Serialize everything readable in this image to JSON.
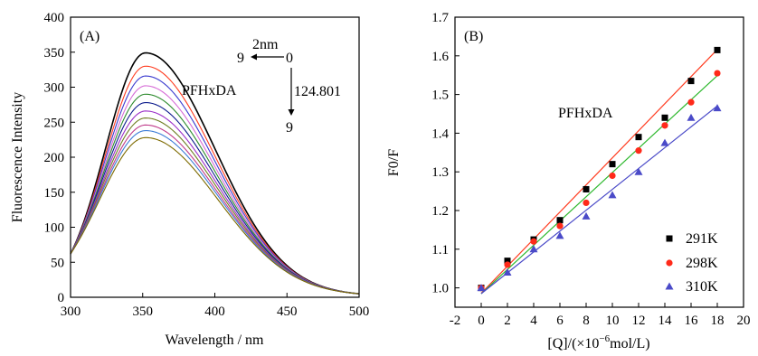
{
  "chart_data": [
    {
      "panel": "(A)",
      "type": "line",
      "xlabel": "Wavelength / nm",
      "ylabel": "Fluorescence Intensity",
      "xlim": [
        300,
        500
      ],
      "ylim": [
        0,
        400
      ],
      "xticks": [
        300,
        350,
        400,
        450,
        500
      ],
      "yticks": [
        0,
        50,
        100,
        150,
        200,
        250,
        300,
        350,
        400
      ],
      "grid": false,
      "annotations": {
        "compound": "PFHxDA",
        "step": "2nm",
        "arrow_start": "0",
        "arrow_end_left": "9",
        "value": "124.801",
        "arrow_end_down": "9"
      },
      "series": [
        {
          "peak": 347,
          "color": "#000000"
        },
        {
          "peak": 328,
          "color": "#ff3b1f"
        },
        {
          "peak": 314,
          "color": "#3a3acf"
        },
        {
          "peak": 300,
          "color": "#d66bd6"
        },
        {
          "peak": 288,
          "color": "#2d8a2d"
        },
        {
          "peak": 276,
          "color": "#0b1a8c"
        },
        {
          "peak": 264,
          "color": "#9b30c8"
        },
        {
          "peak": 254,
          "color": "#6e7e22"
        },
        {
          "peak": 244,
          "color": "#c03a8a"
        },
        {
          "peak": 236,
          "color": "#3b7bd6"
        },
        {
          "peak": 226,
          "color": "#7d6a00"
        }
      ],
      "curve_shape": {
        "peak_x": 352,
        "value_at_300": 62,
        "value_at_500": 4
      }
    },
    {
      "panel": "(B)",
      "type": "scatter",
      "xlabel": "[Q]/(×10",
      "xlabel_sup": "−6",
      "xlabel_tail": "mol/L)",
      "ylabel": "F0/F",
      "xlim": [
        -2,
        20
      ],
      "ylim": [
        0.95,
        1.7
      ],
      "xticks": [
        -2,
        0,
        2,
        4,
        6,
        8,
        10,
        12,
        14,
        16,
        18,
        20
      ],
      "yticks": [
        1.0,
        1.1,
        1.2,
        1.3,
        1.4,
        1.5,
        1.6,
        1.7
      ],
      "grid": false,
      "annotation": "PFHxDA",
      "legend_position": "bottom-right",
      "x": [
        0,
        2,
        4,
        6,
        8,
        10,
        12,
        14,
        16,
        18
      ],
      "series": [
        {
          "name": "291K",
          "marker": "square",
          "color": "#000000",
          "fit_color": "#ff3b1f",
          "values": [
            1.0,
            1.07,
            1.125,
            1.175,
            1.255,
            1.32,
            1.39,
            1.44,
            1.535,
            1.615
          ],
          "fit": [
            0.986,
            1.6164
          ]
        },
        {
          "name": "298K",
          "marker": "circle",
          "color": "#ff2a1a",
          "fit_color": "#2db82d",
          "values": [
            1.0,
            1.06,
            1.12,
            1.16,
            1.22,
            1.29,
            1.355,
            1.42,
            1.48,
            1.555
          ],
          "fit": [
            0.985,
            1.549
          ]
        },
        {
          "name": "310K",
          "marker": "triangle",
          "color": "#4a4ac8",
          "fit_color": "#4a4ac8",
          "values": [
            1.0,
            1.04,
            1.1,
            1.135,
            1.185,
            1.24,
            1.3,
            1.375,
            1.44,
            1.465
          ],
          "fit": [
            0.985,
            1.4704
          ]
        }
      ]
    }
  ]
}
